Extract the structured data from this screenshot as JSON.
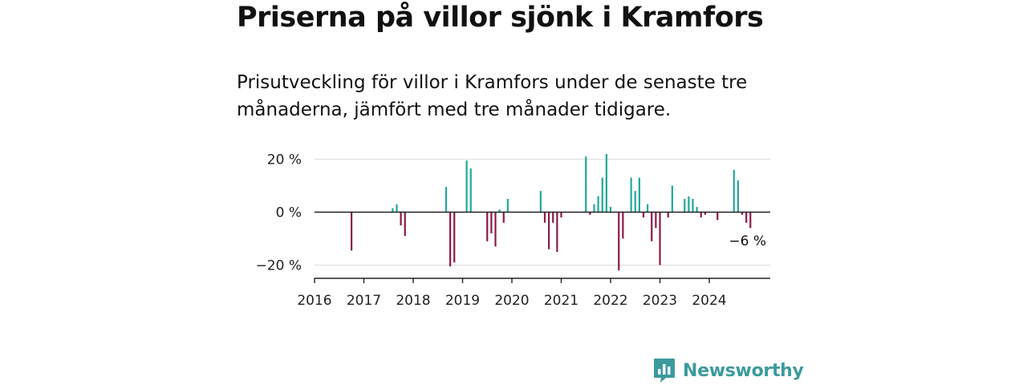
{
  "header": {
    "title": "Priserna på villor sjönk i Kramfors",
    "subtitle": "Prisutveckling för villor i Kramfors under de senaste tre månaderna, jämfört med tre månader tidigare."
  },
  "brand": {
    "name": "Newsworthy",
    "icon": "newsworthy-logo-icon"
  },
  "colors": {
    "positive": "#22a899",
    "negative": "#8a1b47",
    "axis": "#222222",
    "grid": "#dddddd",
    "brand": "#3b9a9c"
  },
  "chart_data": {
    "type": "bar",
    "title": "Priserna på villor sjönk i Kramfors",
    "xlabel": "",
    "ylabel": "",
    "x_tick_labels": [
      "2016",
      "2017",
      "2018",
      "2019",
      "2020",
      "2021",
      "2022",
      "2023",
      "2024"
    ],
    "y_ticks": [
      20,
      0,
      -20
    ],
    "y_tick_labels": [
      "20 %",
      "0 %",
      "−20 %"
    ],
    "ylim": [
      -25,
      23
    ],
    "xlim": [
      "2016-01",
      "2025-04"
    ],
    "grid": true,
    "annotation": {
      "text": "−6 %",
      "x": "2024-09",
      "y": -6
    },
    "series": [
      {
        "points": [
          {
            "x": "2016-10",
            "y": -14.5
          },
          {
            "x": "2017-08",
            "y": 1.5
          },
          {
            "x": "2017-09",
            "y": 3
          },
          {
            "x": "2017-10",
            "y": -5
          },
          {
            "x": "2017-11",
            "y": -9
          },
          {
            "x": "2018-09",
            "y": 9.5
          },
          {
            "x": "2018-10",
            "y": -20.5
          },
          {
            "x": "2018-11",
            "y": -19
          },
          {
            "x": "2019-02",
            "y": 19.5
          },
          {
            "x": "2019-03",
            "y": 16.5
          },
          {
            "x": "2019-07",
            "y": -11
          },
          {
            "x": "2019-08",
            "y": -8
          },
          {
            "x": "2019-09",
            "y": -13
          },
          {
            "x": "2019-10",
            "y": 1
          },
          {
            "x": "2019-11",
            "y": -4
          },
          {
            "x": "2019-12",
            "y": 5
          },
          {
            "x": "2020-08",
            "y": 8
          },
          {
            "x": "2020-09",
            "y": -4
          },
          {
            "x": "2020-10",
            "y": -14
          },
          {
            "x": "2020-11",
            "y": -4
          },
          {
            "x": "2020-12",
            "y": -15
          },
          {
            "x": "2021-01",
            "y": -2
          },
          {
            "x": "2021-07",
            "y": 21
          },
          {
            "x": "2021-08",
            "y": -1
          },
          {
            "x": "2021-09",
            "y": 3
          },
          {
            "x": "2021-10",
            "y": 6
          },
          {
            "x": "2021-11",
            "y": 13
          },
          {
            "x": "2021-12",
            "y": 22
          },
          {
            "x": "2022-01",
            "y": 2
          },
          {
            "x": "2022-03",
            "y": -22
          },
          {
            "x": "2022-04",
            "y": -10
          },
          {
            "x": "2022-06",
            "y": 13
          },
          {
            "x": "2022-07",
            "y": 8
          },
          {
            "x": "2022-08",
            "y": 13
          },
          {
            "x": "2022-09",
            "y": -2
          },
          {
            "x": "2022-10",
            "y": 3
          },
          {
            "x": "2022-11",
            "y": -11
          },
          {
            "x": "2022-12",
            "y": -6
          },
          {
            "x": "2023-01",
            "y": -20
          },
          {
            "x": "2023-03",
            "y": -2
          },
          {
            "x": "2023-04",
            "y": 10
          },
          {
            "x": "2023-07",
            "y": 5
          },
          {
            "x": "2023-08",
            "y": 6
          },
          {
            "x": "2023-09",
            "y": 5
          },
          {
            "x": "2023-10",
            "y": 2
          },
          {
            "x": "2023-11",
            "y": -2
          },
          {
            "x": "2023-12",
            "y": -1
          },
          {
            "x": "2024-03",
            "y": -3
          },
          {
            "x": "2024-07",
            "y": 16
          },
          {
            "x": "2024-08",
            "y": 12
          },
          {
            "x": "2024-09",
            "y": -1
          },
          {
            "x": "2024-10",
            "y": -4
          },
          {
            "x": "2024-11",
            "y": -6
          }
        ]
      }
    ]
  }
}
